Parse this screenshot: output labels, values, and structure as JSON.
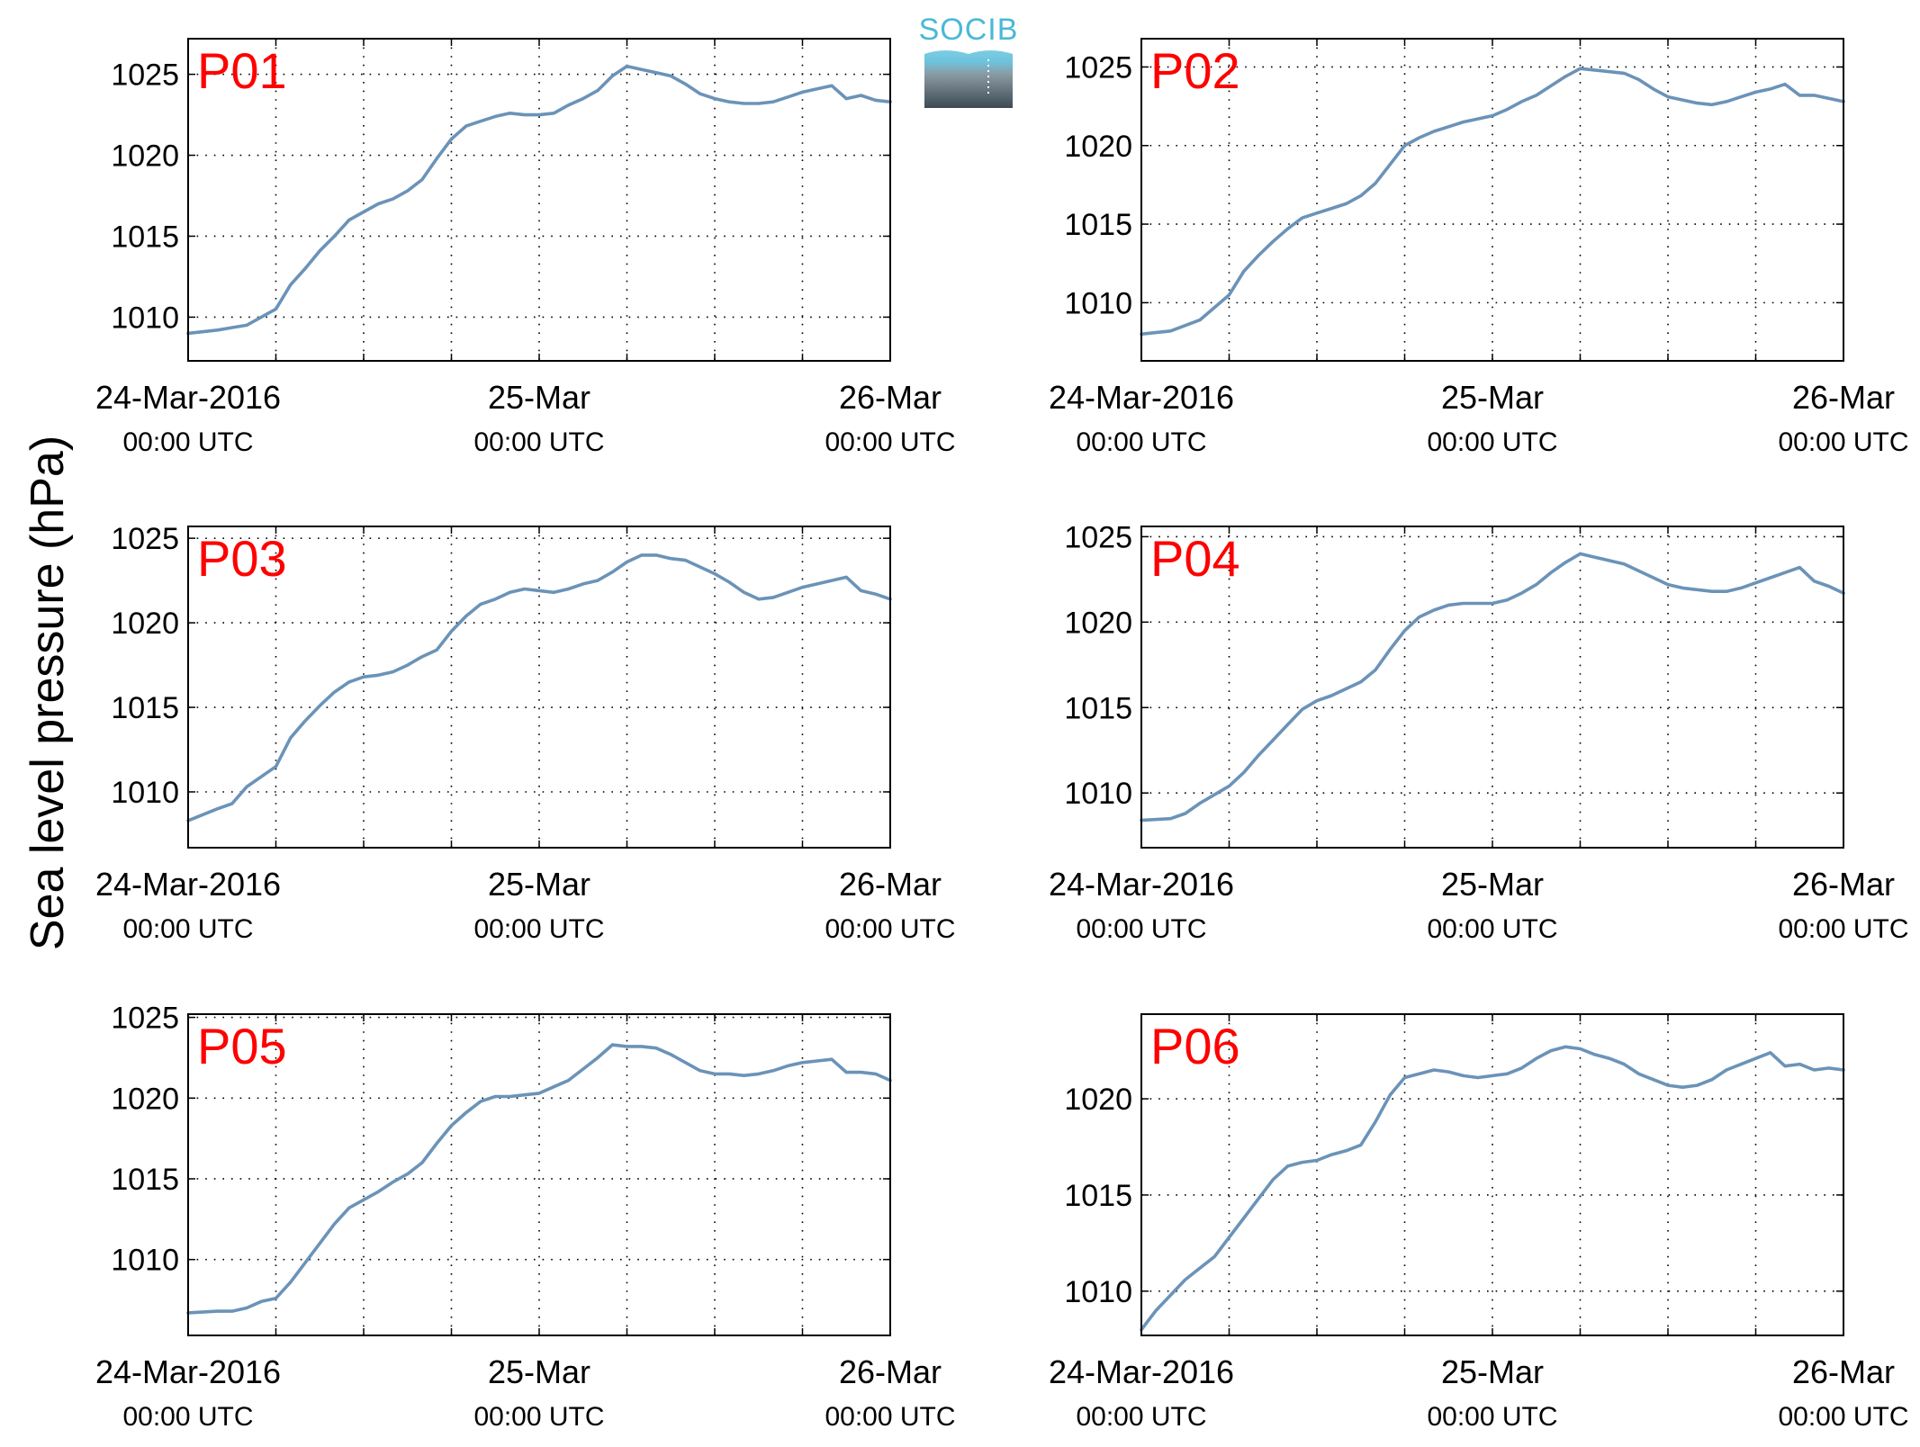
{
  "figure": {
    "ylabel": "Sea level pressure (hPa)",
    "logo_text": "SOCIB",
    "line_color": "#6b93b8",
    "label_color": "#ff0000"
  },
  "chart_data": [
    {
      "type": "line",
      "label": "P01",
      "x_ticks": [
        {
          "line1": "24-Mar-2016",
          "line2": "00:00 UTC"
        },
        {
          "line1": "25-Mar",
          "line2": "00:00 UTC"
        },
        {
          "line1": "26-Mar",
          "line2": "00:00 UTC"
        }
      ],
      "xlim_hours": [
        0,
        48
      ],
      "ylim": [
        1007.3,
        1027.2
      ],
      "yticks": [
        1010,
        1015,
        1020,
        1025
      ],
      "grid": true,
      "series": {
        "x_hours": [
          0,
          2,
          4,
          6,
          7,
          8,
          9,
          10,
          11,
          12,
          13,
          14,
          15,
          16,
          17,
          18,
          19,
          20,
          21,
          22,
          23,
          24,
          25,
          26,
          27,
          28,
          29,
          30,
          31,
          32,
          33,
          34,
          35,
          36,
          37,
          38,
          39,
          40,
          41,
          42,
          43,
          44,
          45,
          46,
          47,
          48
        ],
        "y": [
          1009.0,
          1009.2,
          1009.5,
          1010.5,
          1012.0,
          1013.0,
          1014.1,
          1015.0,
          1016.0,
          1016.5,
          1017.0,
          1017.3,
          1017.8,
          1018.5,
          1019.8,
          1021.0,
          1021.8,
          1022.1,
          1022.4,
          1022.6,
          1022.5,
          1022.5,
          1022.6,
          1023.1,
          1023.5,
          1024.0,
          1024.9,
          1025.5,
          1025.3,
          1025.1,
          1024.9,
          1024.4,
          1023.8,
          1023.5,
          1023.3,
          1023.2,
          1023.2,
          1023.3,
          1023.6,
          1023.9,
          1024.1,
          1024.3,
          1023.5,
          1023.7,
          1023.4,
          1023.3
        ]
      }
    },
    {
      "type": "line",
      "label": "P02",
      "x_ticks": [
        {
          "line1": "24-Mar-2016",
          "line2": "00:00 UTC"
        },
        {
          "line1": "25-Mar",
          "line2": "00:00 UTC"
        },
        {
          "line1": "26-Mar",
          "line2": "00:00 UTC"
        }
      ],
      "xlim_hours": [
        0,
        48
      ],
      "ylim": [
        1006.3,
        1026.8
      ],
      "yticks": [
        1010,
        1015,
        1020,
        1025
      ],
      "grid": true,
      "series": {
        "x_hours": [
          0,
          2,
          4,
          6,
          7,
          8,
          9,
          10,
          11,
          12,
          13,
          14,
          15,
          16,
          17,
          18,
          19,
          20,
          21,
          22,
          23,
          24,
          25,
          26,
          27,
          28,
          29,
          30,
          31,
          32,
          33,
          34,
          35,
          36,
          37,
          38,
          39,
          40,
          41,
          42,
          43,
          44,
          45,
          46,
          47,
          48
        ],
        "y": [
          1008.0,
          1008.2,
          1008.9,
          1010.5,
          1012.0,
          1013.0,
          1013.9,
          1014.7,
          1015.4,
          1015.7,
          1016.0,
          1016.3,
          1016.8,
          1017.6,
          1018.8,
          1020.0,
          1020.5,
          1020.9,
          1021.2,
          1021.5,
          1021.7,
          1021.9,
          1022.3,
          1022.8,
          1023.2,
          1023.8,
          1024.4,
          1024.9,
          1024.8,
          1024.7,
          1024.6,
          1024.2,
          1023.6,
          1023.1,
          1022.9,
          1022.7,
          1022.6,
          1022.8,
          1023.1,
          1023.4,
          1023.6,
          1023.9,
          1023.2,
          1023.2,
          1023.0,
          1022.8
        ]
      }
    },
    {
      "type": "line",
      "label": "P03",
      "x_ticks": [
        {
          "line1": "24-Mar-2016",
          "line2": "00:00 UTC"
        },
        {
          "line1": "25-Mar",
          "line2": "00:00 UTC"
        },
        {
          "line1": "26-Mar",
          "line2": "00:00 UTC"
        }
      ],
      "xlim_hours": [
        0,
        48
      ],
      "ylim": [
        1006.7,
        1025.7
      ],
      "yticks": [
        1010,
        1015,
        1020,
        1025
      ],
      "grid": true,
      "series": {
        "x_hours": [
          0,
          2,
          3,
          4,
          6,
          7,
          8,
          9,
          10,
          11,
          12,
          13,
          14,
          15,
          16,
          17,
          18,
          19,
          20,
          21,
          22,
          23,
          24,
          25,
          26,
          27,
          28,
          29,
          30,
          31,
          32,
          33,
          34,
          35,
          36,
          37,
          38,
          39,
          40,
          41,
          42,
          43,
          44,
          45,
          46,
          47,
          48
        ],
        "y": [
          1008.3,
          1009.0,
          1009.3,
          1010.3,
          1011.5,
          1013.2,
          1014.2,
          1015.1,
          1015.9,
          1016.5,
          1016.8,
          1016.9,
          1017.1,
          1017.5,
          1018.0,
          1018.4,
          1019.5,
          1020.4,
          1021.1,
          1021.4,
          1021.8,
          1022.0,
          1021.9,
          1021.8,
          1022.0,
          1022.3,
          1022.5,
          1023.0,
          1023.6,
          1024.0,
          1024.0,
          1023.8,
          1023.7,
          1023.3,
          1022.9,
          1022.4,
          1021.8,
          1021.4,
          1021.5,
          1021.8,
          1022.1,
          1022.3,
          1022.5,
          1022.7,
          1021.9,
          1021.7,
          1021.4
        ]
      }
    },
    {
      "type": "line",
      "label": "P04",
      "x_ticks": [
        {
          "line1": "24-Mar-2016",
          "line2": "00:00 UTC"
        },
        {
          "line1": "25-Mar",
          "line2": "00:00 UTC"
        },
        {
          "line1": "26-Mar",
          "line2": "00:00 UTC"
        }
      ],
      "xlim_hours": [
        0,
        48
      ],
      "ylim": [
        1006.8,
        1025.6
      ],
      "yticks": [
        1010,
        1015,
        1020,
        1025
      ],
      "grid": true,
      "series": {
        "x_hours": [
          0,
          2,
          3,
          4,
          5,
          6,
          7,
          8,
          9,
          10,
          11,
          12,
          13,
          14,
          15,
          16,
          17,
          18,
          19,
          20,
          21,
          22,
          23,
          24,
          25,
          26,
          27,
          28,
          29,
          30,
          31,
          32,
          33,
          34,
          35,
          36,
          37,
          38,
          39,
          40,
          41,
          42,
          43,
          44,
          45,
          46,
          47,
          48
        ],
        "y": [
          1008.4,
          1008.5,
          1008.8,
          1009.4,
          1009.9,
          1010.4,
          1011.2,
          1012.2,
          1013.1,
          1014.0,
          1014.9,
          1015.4,
          1015.7,
          1016.1,
          1016.5,
          1017.2,
          1018.4,
          1019.5,
          1020.3,
          1020.7,
          1021.0,
          1021.1,
          1021.1,
          1021.1,
          1021.3,
          1021.7,
          1022.2,
          1022.9,
          1023.5,
          1024.0,
          1023.8,
          1023.6,
          1023.4,
          1023.0,
          1022.6,
          1022.2,
          1022.0,
          1021.9,
          1021.8,
          1021.8,
          1022.0,
          1022.3,
          1022.6,
          1022.9,
          1023.2,
          1022.4,
          1022.1,
          1021.7
        ]
      }
    },
    {
      "type": "line",
      "label": "P05",
      "x_ticks": [
        {
          "line1": "24-Mar-2016",
          "line2": "00:00 UTC"
        },
        {
          "line1": "25-Mar",
          "line2": "00:00 UTC"
        },
        {
          "line1": "26-Mar",
          "line2": "00:00 UTC"
        }
      ],
      "xlim_hours": [
        0,
        48
      ],
      "ylim": [
        1005.3,
        1025.2
      ],
      "yticks": [
        1010,
        1015,
        1020,
        1025
      ],
      "grid": true,
      "series": {
        "x_hours": [
          0,
          2,
          3,
          4,
          5,
          6,
          7,
          8,
          9,
          10,
          11,
          12,
          13,
          14,
          15,
          16,
          17,
          18,
          19,
          20,
          21,
          22,
          23,
          24,
          25,
          26,
          27,
          28,
          29,
          30,
          31,
          32,
          33,
          34,
          35,
          36,
          37,
          38,
          39,
          40,
          41,
          42,
          43,
          44,
          45,
          46,
          47,
          48
        ],
        "y": [
          1006.7,
          1006.8,
          1006.8,
          1007.0,
          1007.4,
          1007.6,
          1008.6,
          1009.8,
          1011.0,
          1012.2,
          1013.2,
          1013.7,
          1014.2,
          1014.8,
          1015.3,
          1016.0,
          1017.2,
          1018.3,
          1019.1,
          1019.8,
          1020.1,
          1020.1,
          1020.2,
          1020.3,
          1020.7,
          1021.1,
          1021.8,
          1022.5,
          1023.3,
          1023.2,
          1023.2,
          1023.1,
          1022.7,
          1022.2,
          1021.7,
          1021.5,
          1021.5,
          1021.4,
          1021.5,
          1021.7,
          1022.0,
          1022.2,
          1022.3,
          1022.4,
          1021.6,
          1021.6,
          1021.5,
          1021.1
        ]
      }
    },
    {
      "type": "line",
      "label": "P06",
      "x_ticks": [
        {
          "line1": "24-Mar-2016",
          "line2": "00:00 UTC"
        },
        {
          "line1": "25-Mar",
          "line2": "00:00 UTC"
        },
        {
          "line1": "26-Mar",
          "line2": "00:00 UTC"
        }
      ],
      "xlim_hours": [
        0,
        48
      ],
      "ylim": [
        1007.7,
        1024.4
      ],
      "yticks": [
        1010,
        1015,
        1020
      ],
      "grid": true,
      "series": {
        "x_hours": [
          0,
          1,
          2,
          3,
          4,
          5,
          6,
          7,
          8,
          9,
          10,
          11,
          12,
          13,
          14,
          15,
          16,
          17,
          18,
          19,
          20,
          21,
          22,
          23,
          24,
          25,
          26,
          27,
          28,
          29,
          30,
          31,
          32,
          33,
          34,
          35,
          36,
          37,
          38,
          39,
          40,
          41,
          42,
          43,
          44,
          45,
          46,
          47,
          48
        ],
        "y": [
          1008.0,
          1009.0,
          1009.8,
          1010.6,
          1011.2,
          1011.8,
          1012.8,
          1013.8,
          1014.8,
          1015.8,
          1016.5,
          1016.7,
          1016.8,
          1017.1,
          1017.3,
          1017.6,
          1018.8,
          1020.2,
          1021.1,
          1021.3,
          1021.5,
          1021.4,
          1021.2,
          1021.1,
          1021.2,
          1021.3,
          1021.6,
          1022.1,
          1022.5,
          1022.7,
          1022.6,
          1022.3,
          1022.1,
          1021.8,
          1021.3,
          1021.0,
          1020.7,
          1020.6,
          1020.7,
          1021.0,
          1021.5,
          1021.8,
          1022.1,
          1022.4,
          1021.7,
          1021.8,
          1021.5,
          1021.6,
          1021.5
        ]
      }
    }
  ]
}
